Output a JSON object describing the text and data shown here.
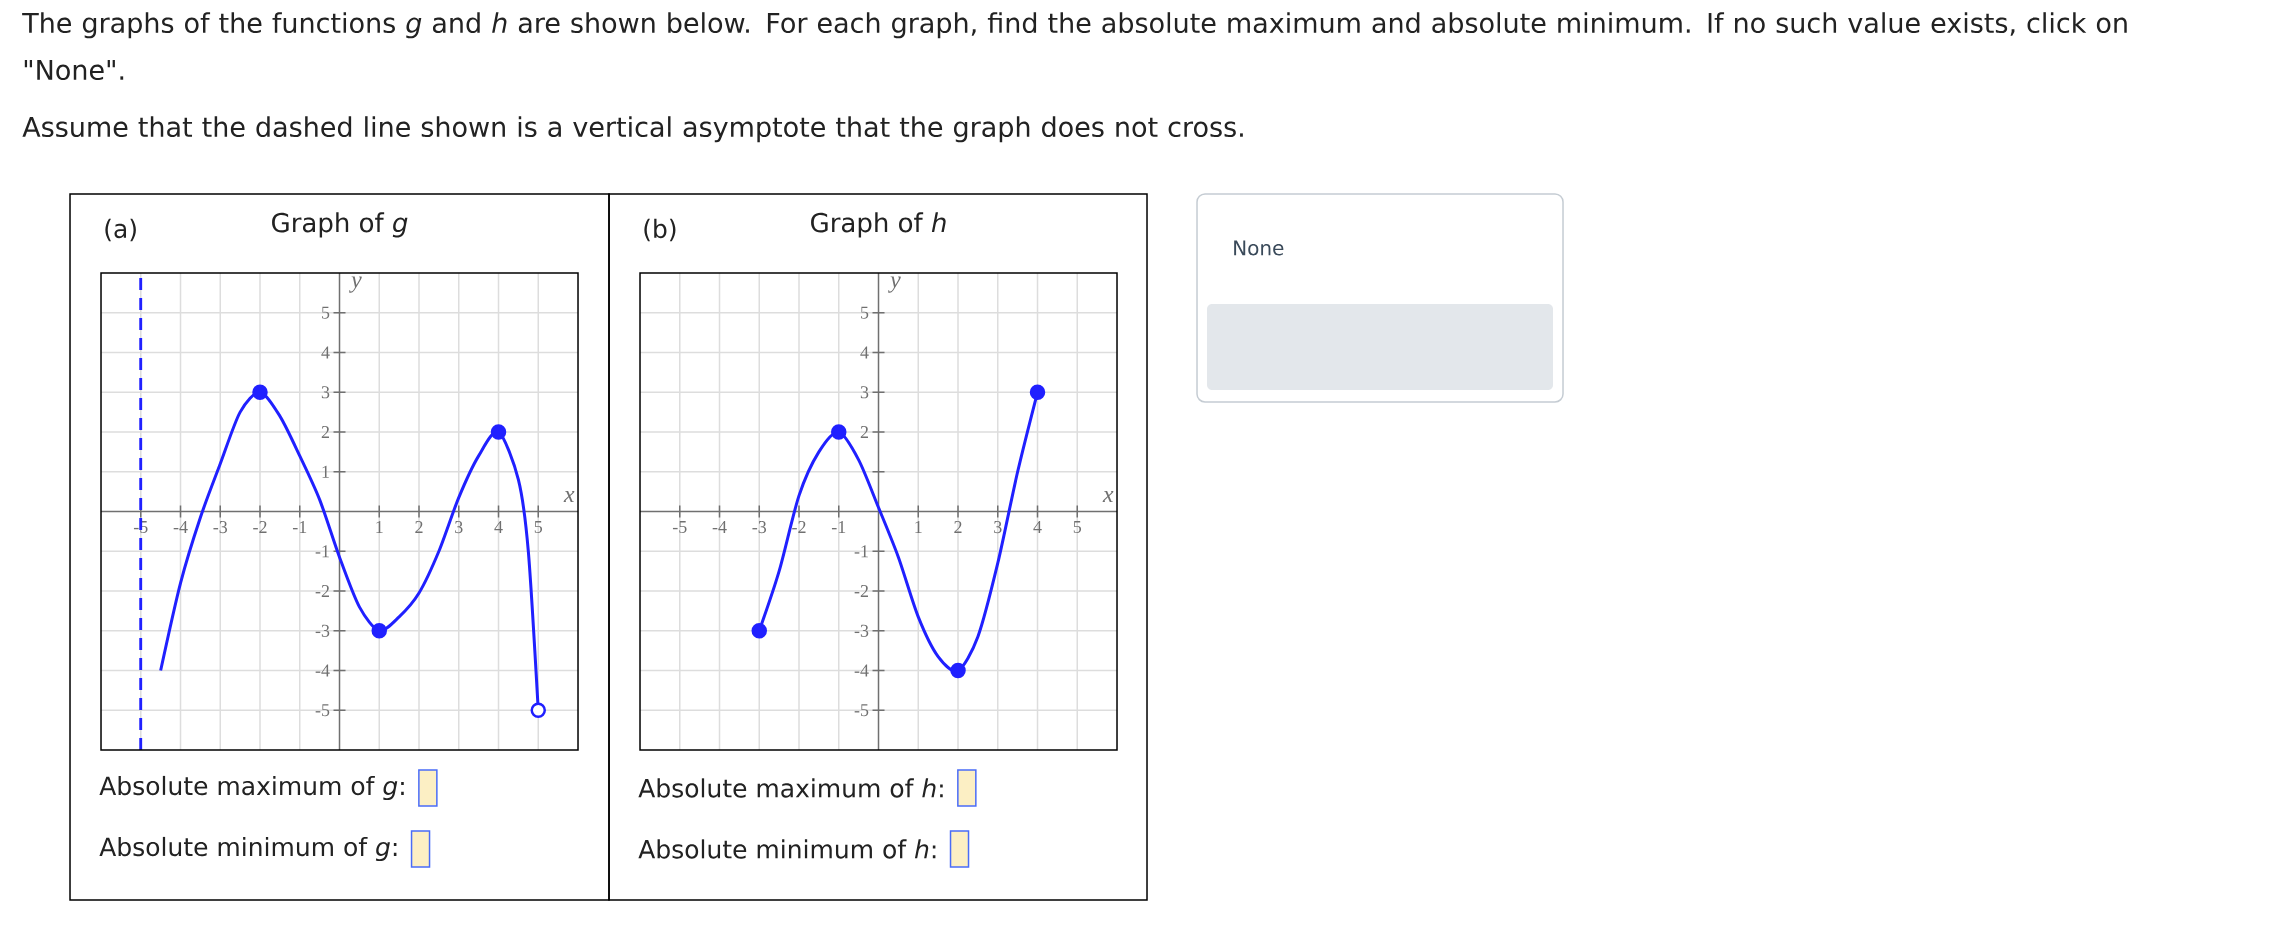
{
  "chart_data": [
    {
      "type": "line",
      "title": "Graph of *g*",
      "xlabel": "x",
      "ylabel": "y",
      "annotations": [
        "The graphs of the functions *g* and *h* are shown below. For each graph, find the absolute maximum and absolute minimum. If no such value exists, click on \"None\".",
        "Assume that the dashed line shown is a vertical asymptote that the graph does not cross.",
        "(a)",
        "Absolute maximum of *g*:",
        "Absolute minimum of *g*:"
      ],
      "xlim": [
        -6,
        6
      ],
      "ylim": [
        -6,
        6
      ],
      "xticks": [
        -5,
        -4,
        -3,
        -2,
        -1,
        1,
        2,
        3,
        4,
        5
      ],
      "yticks": [
        -5,
        -4,
        -3,
        -2,
        -1,
        1,
        2,
        3,
        4,
        5
      ],
      "grid": true,
      "ref_lines": [
        {
          "axis": "x",
          "value": -5,
          "color": "#2020ff",
          "line_style": "dashed"
        }
      ],
      "series": [
        {
          "type": "line",
          "color": "#2020ff",
          "marker": "none",
          "x": [
            -4.5,
            -4,
            -3.5,
            -3,
            -2.5,
            -2,
            -1.5,
            -1,
            -0.5,
            0,
            0.5,
            1,
            1.5,
            2,
            2.5,
            3,
            3.5,
            4,
            4.5,
            4.75,
            5
          ],
          "values": [
            -4,
            -1.8,
            -0.15,
            1.2,
            2.5,
            3,
            2.4,
            1.4,
            0.3,
            -1.15,
            -2.4,
            -3,
            -2.65,
            -2.05,
            -1,
            0.35,
            1.4,
            2,
            0.8,
            -1,
            -5
          ]
        },
        {
          "type": "scatter",
          "color": "#2020ff",
          "marker": "circle",
          "x": [
            -2,
            1,
            4
          ],
          "values": [
            3,
            -3,
            2
          ]
        },
        {
          "type": "scatter",
          "color": "#ffffff",
          "marker": "circle",
          "x": [
            5
          ],
          "values": [
            -5
          ]
        }
      ]
    },
    {
      "type": "line",
      "title": "Graph of *h*",
      "xlabel": "x",
      "ylabel": "y",
      "annotations": [
        "(b)",
        "Absolute maximum of *h*:",
        "Absolute minimum of *h*:"
      ],
      "xlim": [
        -6,
        6
      ],
      "ylim": [
        -6,
        6
      ],
      "xticks": [
        -5,
        -4,
        -3,
        -2,
        -1,
        1,
        2,
        3,
        4,
        5
      ],
      "yticks": [
        -5,
        -4,
        -3,
        -2,
        -1,
        {
          "value": 1,
          "label": null
        },
        2,
        3,
        4,
        5
      ],
      "grid": true,
      "series": [
        {
          "type": "line",
          "color": "#2020ff",
          "marker": "none",
          "x": [
            -3,
            -2.5,
            -2,
            -1.5,
            -1,
            -0.5,
            0,
            0.5,
            1,
            1.5,
            2,
            2.5,
            3,
            3.5,
            4
          ],
          "values": [
            -3,
            -1.5,
            0.4,
            1.5,
            2,
            1.3,
            0.1,
            -1.15,
            -2.65,
            -3.65,
            -4,
            -3.15,
            -1.3,
            1,
            3
          ]
        },
        {
          "type": "scatter",
          "color": "#2020ff",
          "marker": "circle",
          "x": [
            -3,
            -1,
            2,
            4
          ],
          "values": [
            -3,
            2,
            -4,
            3
          ]
        }
      ]
    },
    {
      "type": "other",
      "annotations": [
        "None"
      ]
    }
  ]
}
